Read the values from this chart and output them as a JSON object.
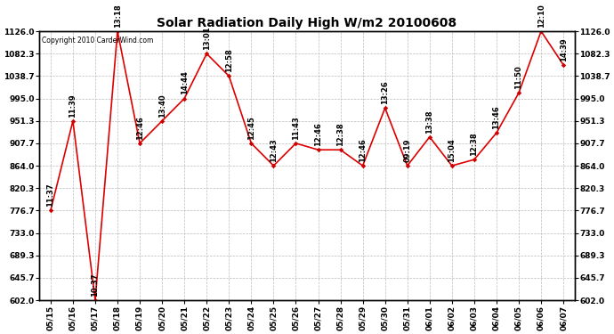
{
  "title": "Solar Radiation Daily High W/m2 20100608",
  "copyright_text": "Copyright 2010 CarderWind.com",
  "dates": [
    "05/15",
    "05/16",
    "05/17",
    "05/18",
    "05/19",
    "05/20",
    "05/21",
    "05/22",
    "05/23",
    "05/24",
    "05/25",
    "05/26",
    "05/27",
    "05/28",
    "05/29",
    "05/30",
    "05/31",
    "06/01",
    "06/02",
    "06/03",
    "06/04",
    "06/05",
    "06/06",
    "06/07"
  ],
  "values": [
    776.7,
    951.3,
    602.0,
    1126.0,
    907.7,
    951.3,
    995.0,
    1082.3,
    1038.7,
    907.7,
    864.0,
    907.7,
    895.0,
    895.0,
    864.0,
    976.5,
    864.0,
    920.0,
    864.0,
    876.0,
    928.0,
    1006.0,
    1126.0,
    1060.5
  ],
  "time_labels": [
    "11:37",
    "11:39",
    "10:37",
    "13:18",
    "12:46",
    "13:40",
    "14:44",
    "13:01",
    "12:58",
    "12:45",
    "12:43",
    "11:43",
    "12:46",
    "12:38",
    "12:46",
    "13:26",
    "09:19",
    "13:38",
    "15:04",
    "12:38",
    "13:46",
    "11:50",
    "12:10",
    "14:39"
  ],
  "line_color": "#dd0000",
  "marker_color": "#cc0000",
  "background_color": "#ffffff",
  "grid_color": "#bbbbbb",
  "ylim_min": 602.0,
  "ylim_max": 1126.0,
  "yticks": [
    602.0,
    645.7,
    689.3,
    733.0,
    776.7,
    820.3,
    864.0,
    907.7,
    951.3,
    995.0,
    1038.7,
    1082.3,
    1126.0
  ],
  "title_fontsize": 10,
  "tick_fontsize": 6.5,
  "label_fontsize": 6,
  "copyright_fontsize": 5.5
}
